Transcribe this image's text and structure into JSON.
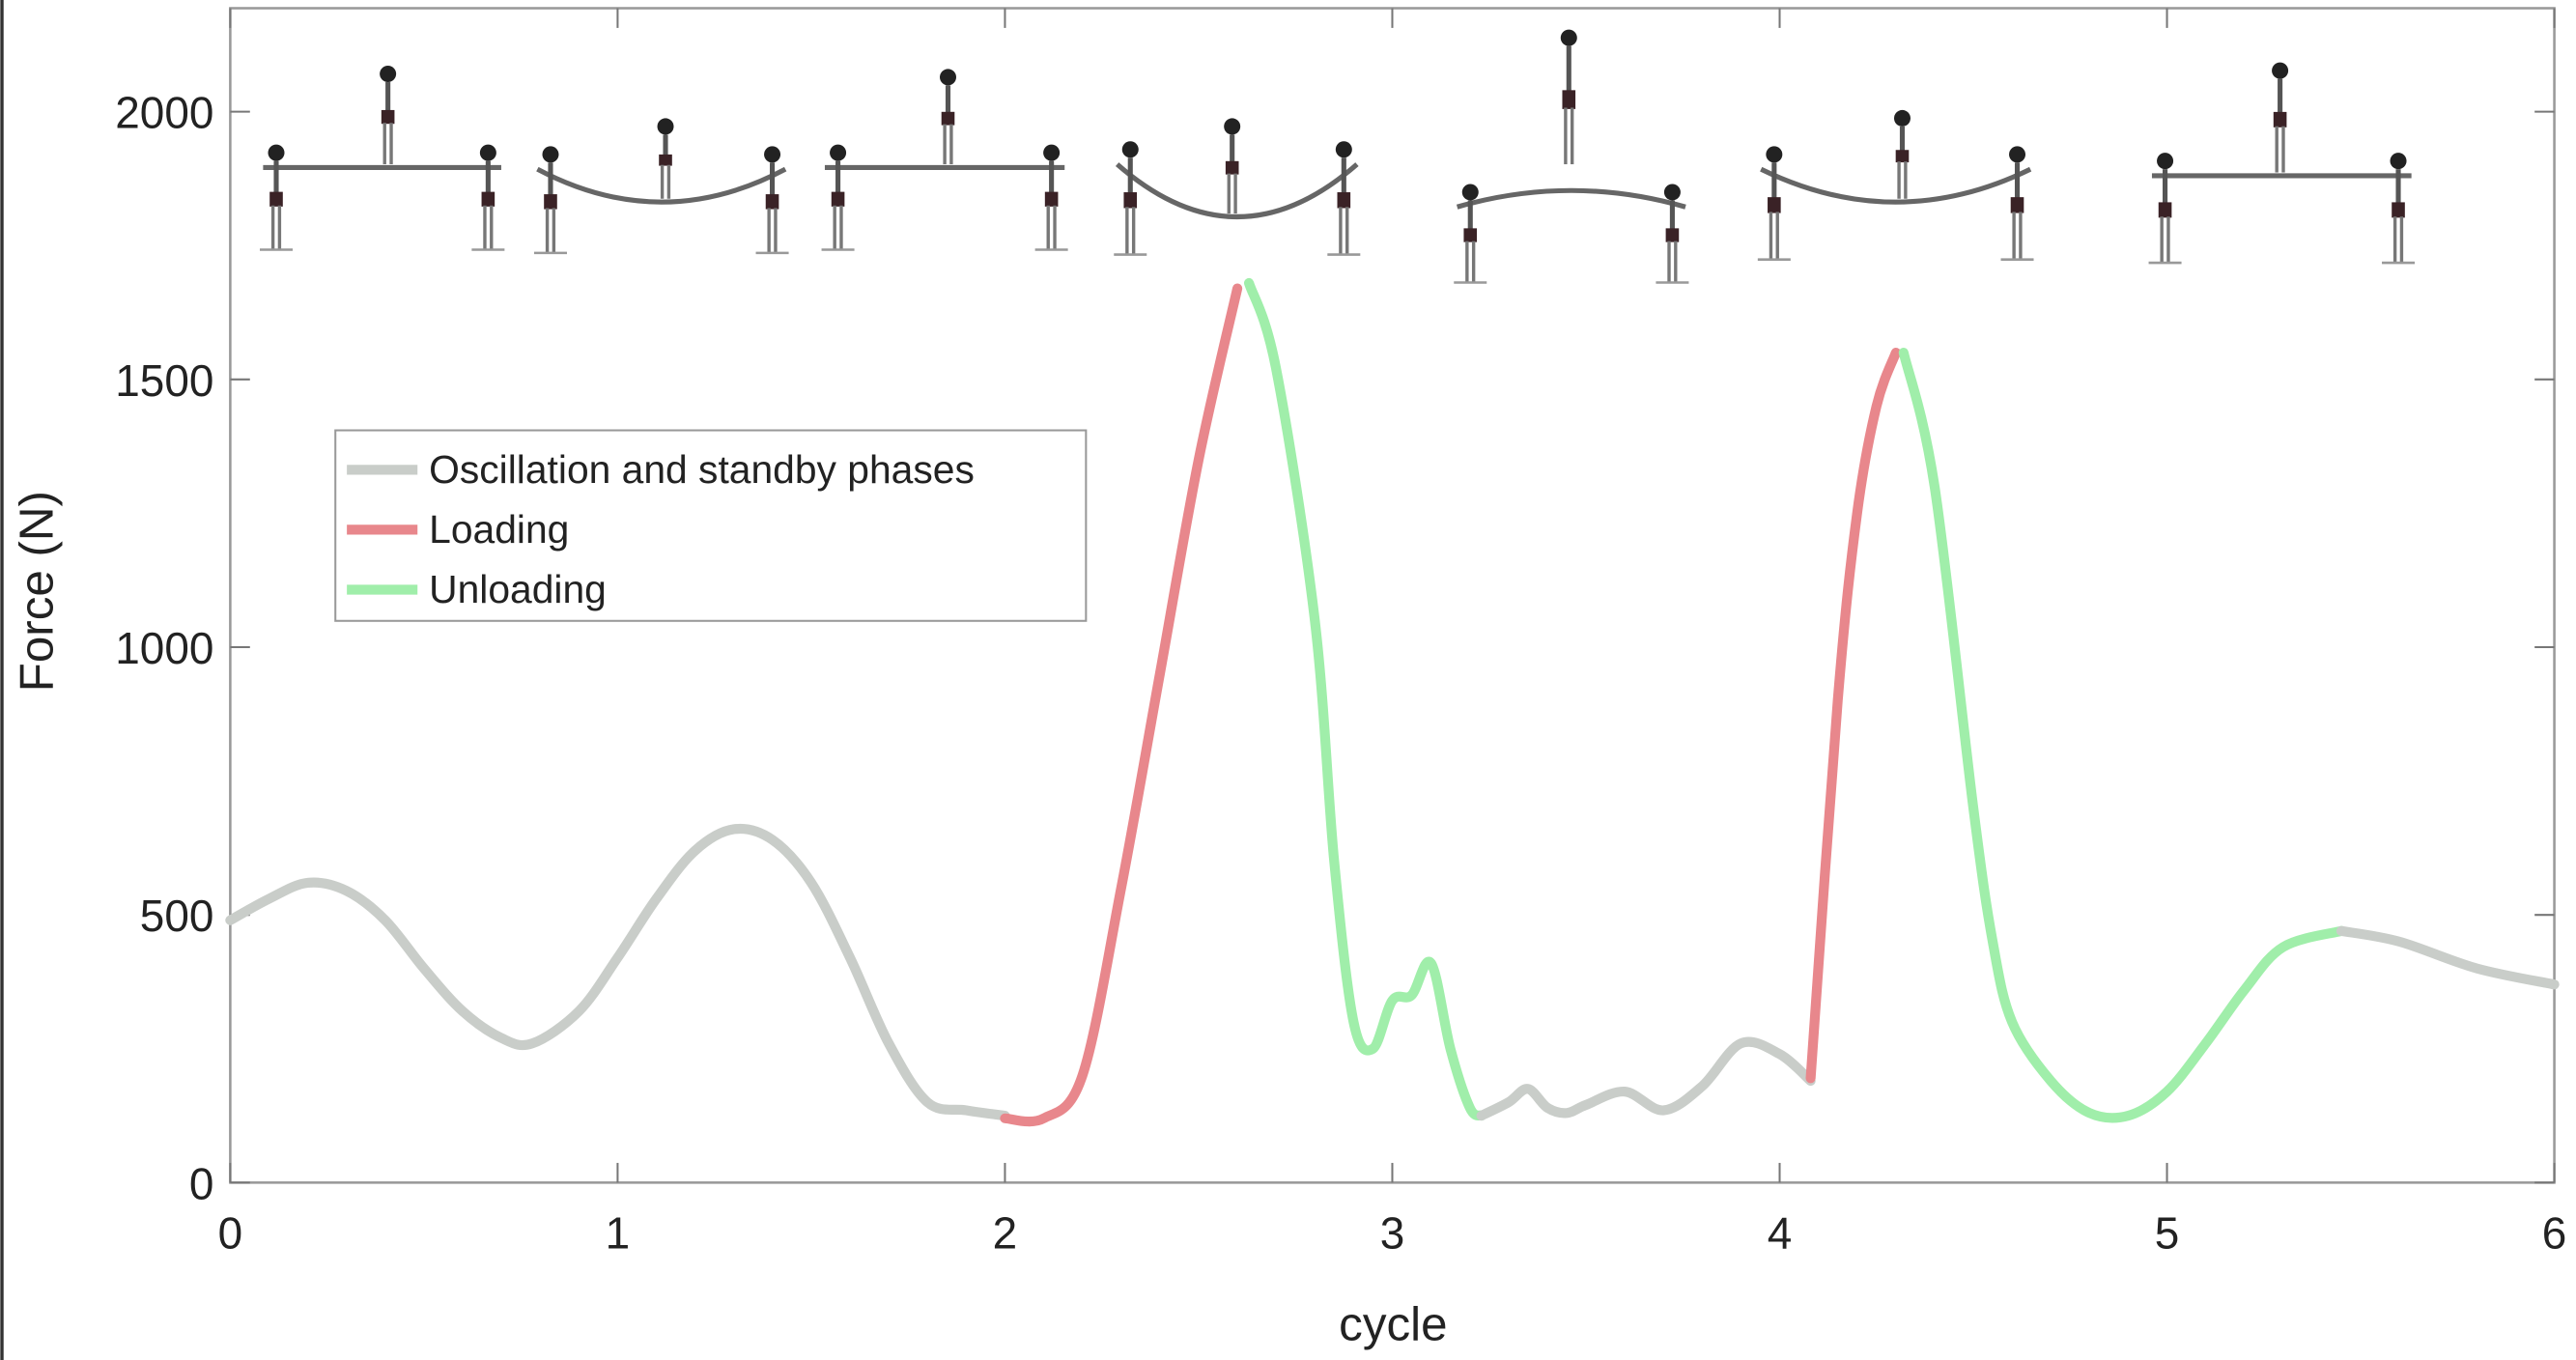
{
  "chart_data": {
    "type": "line",
    "title": "",
    "xlabel": "cycle",
    "ylabel": "Force (N)",
    "xlim": [
      0,
      6
    ],
    "ylim": [
      0,
      2200
    ],
    "xticks": [
      "0",
      "1",
      "2",
      "3",
      "4",
      "5",
      "6"
    ],
    "yticks": [
      "0",
      "500",
      "1000",
      "1500",
      "2000"
    ],
    "grid": false,
    "legend_position": "upper-left",
    "legend": [
      {
        "label": "Oscillation and standby phases",
        "color": "#c9cdc9"
      },
      {
        "label": "Loading",
        "color": "#e8878c"
      },
      {
        "label": "Unloading",
        "color": "#a0eeaa"
      }
    ],
    "series": [
      {
        "name": "Oscillation and standby phases",
        "color": "#c9cdc9",
        "points": [
          [
            0,
            490
          ],
          [
            0.1,
            530
          ],
          [
            0.2,
            560
          ],
          [
            0.3,
            545
          ],
          [
            0.4,
            490
          ],
          [
            0.5,
            400
          ],
          [
            0.6,
            320
          ],
          [
            0.7,
            270
          ],
          [
            0.78,
            260
          ],
          [
            0.9,
            320
          ],
          [
            1.0,
            420
          ],
          [
            1.1,
            530
          ],
          [
            1.2,
            620
          ],
          [
            1.3,
            660
          ],
          [
            1.4,
            640
          ],
          [
            1.5,
            560
          ],
          [
            1.6,
            420
          ],
          [
            1.7,
            260
          ],
          [
            1.8,
            150
          ],
          [
            1.9,
            135
          ],
          [
            2.0,
            125
          ]
        ]
      },
      {
        "name": "Loading",
        "color": "#e8878c",
        "points": [
          [
            2.0,
            120
          ],
          [
            2.1,
            120
          ],
          [
            2.2,
            200
          ],
          [
            2.3,
            550
          ],
          [
            2.4,
            950
          ],
          [
            2.5,
            1350
          ],
          [
            2.6,
            1670
          ]
        ]
      },
      {
        "name": "Unloading",
        "color": "#a0eeaa",
        "points": [
          [
            2.63,
            1680
          ],
          [
            2.7,
            1520
          ],
          [
            2.8,
            1050
          ],
          [
            2.85,
            600
          ],
          [
            2.9,
            300
          ],
          [
            2.95,
            250
          ],
          [
            3.0,
            340
          ],
          [
            3.05,
            350
          ],
          [
            3.1,
            410
          ],
          [
            3.15,
            250
          ],
          [
            3.2,
            140
          ],
          [
            3.23,
            125
          ]
        ]
      },
      {
        "name": "Oscillation and standby phases",
        "color": "#c9cdc9",
        "points": [
          [
            3.23,
            125
          ],
          [
            3.3,
            150
          ],
          [
            3.35,
            175
          ],
          [
            3.4,
            140
          ],
          [
            3.45,
            130
          ],
          [
            3.5,
            145
          ],
          [
            3.6,
            170
          ],
          [
            3.7,
            135
          ],
          [
            3.8,
            180
          ],
          [
            3.9,
            260
          ],
          [
            4.0,
            240
          ],
          [
            4.08,
            190
          ]
        ]
      },
      {
        "name": "Loading",
        "color": "#e8878c",
        "points": [
          [
            4.08,
            195
          ],
          [
            4.15,
            900
          ],
          [
            4.2,
            1250
          ],
          [
            4.25,
            1450
          ],
          [
            4.3,
            1550
          ]
        ]
      },
      {
        "name": "Unloading",
        "color": "#a0eeaa",
        "points": [
          [
            4.32,
            1550
          ],
          [
            4.4,
            1300
          ],
          [
            4.5,
            700
          ],
          [
            4.55,
            450
          ],
          [
            4.6,
            300
          ],
          [
            4.7,
            190
          ],
          [
            4.8,
            130
          ],
          [
            4.9,
            125
          ],
          [
            5.0,
            170
          ],
          [
            5.1,
            260
          ],
          [
            5.2,
            360
          ],
          [
            5.3,
            440
          ],
          [
            5.45,
            470
          ]
        ]
      },
      {
        "name": "Oscillation and standby phases",
        "color": "#c9cdc9",
        "points": [
          [
            5.45,
            470
          ],
          [
            5.6,
            450
          ],
          [
            5.8,
            400
          ],
          [
            6.0,
            370
          ]
        ]
      }
    ]
  }
}
